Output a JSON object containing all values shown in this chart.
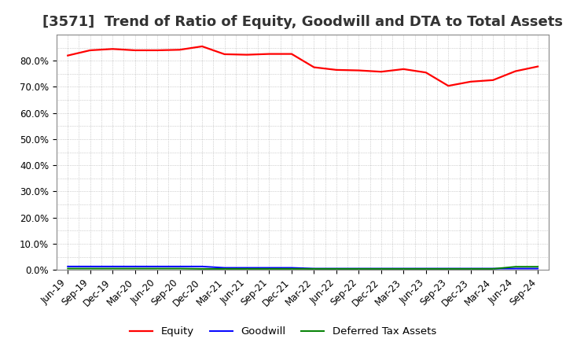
{
  "title": "[3571]  Trend of Ratio of Equity, Goodwill and DTA to Total Assets",
  "ylim": [
    0.0,
    0.9
  ],
  "yticks": [
    0.0,
    0.1,
    0.2,
    0.3,
    0.4,
    0.5,
    0.6,
    0.7,
    0.8
  ],
  "x_labels": [
    "Jun-19",
    "Sep-19",
    "Dec-19",
    "Mar-20",
    "Jun-20",
    "Sep-20",
    "Dec-20",
    "Mar-21",
    "Jun-21",
    "Sep-21",
    "Dec-21",
    "Mar-22",
    "Jun-22",
    "Sep-22",
    "Dec-22",
    "Mar-23",
    "Jun-23",
    "Sep-23",
    "Dec-23",
    "Mar-24",
    "Jun-24",
    "Sep-24"
  ],
  "equity": [
    0.82,
    0.84,
    0.845,
    0.84,
    0.84,
    0.842,
    0.855,
    0.825,
    0.823,
    0.826,
    0.826,
    0.775,
    0.765,
    0.763,
    0.758,
    0.768,
    0.755,
    0.704,
    0.72,
    0.726,
    0.76,
    0.778
  ],
  "goodwill": [
    0.013,
    0.013,
    0.013,
    0.013,
    0.013,
    0.013,
    0.013,
    0.008,
    0.008,
    0.008,
    0.008,
    0.005,
    0.005,
    0.005,
    0.005,
    0.005,
    0.005,
    0.005,
    0.005,
    0.005,
    0.005,
    0.005
  ],
  "dta": [
    0.005,
    0.005,
    0.005,
    0.005,
    0.005,
    0.005,
    0.004,
    0.004,
    0.004,
    0.004,
    0.004,
    0.004,
    0.004,
    0.004,
    0.004,
    0.004,
    0.004,
    0.004,
    0.004,
    0.004,
    0.012,
    0.012
  ],
  "equity_color": "#FF0000",
  "goodwill_color": "#0000FF",
  "dta_color": "#008000",
  "background_color": "#FFFFFF",
  "title_fontsize": 13,
  "tick_fontsize": 8.5,
  "legend_fontsize": 9.5
}
